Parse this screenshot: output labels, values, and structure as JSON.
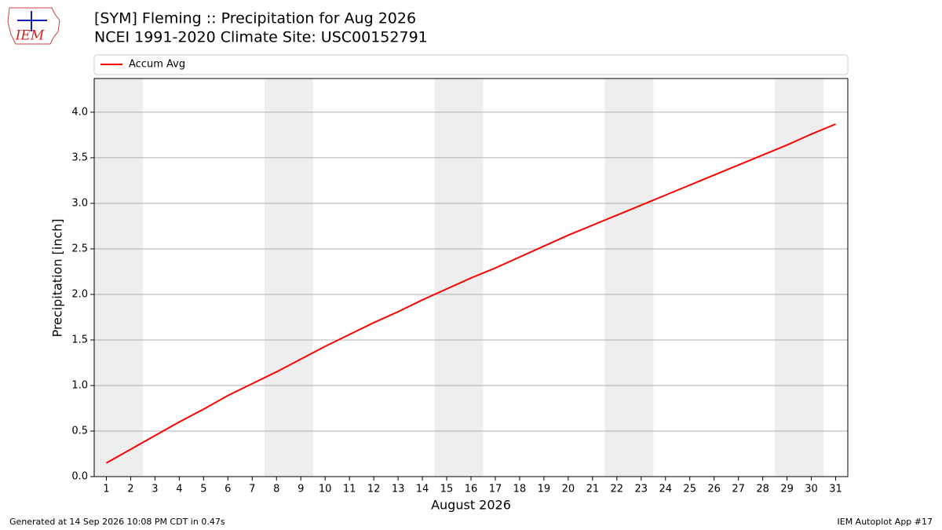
{
  "logo_text": "IEM",
  "chart_data": {
    "type": "line",
    "title": "[SYM] Fleming :: Precipitation for Aug 2026",
    "subtitle": "NCEI 1991-2020 Climate Site: USC00152791",
    "x_label": "August 2026",
    "y_label": "Precipitation [inch]",
    "x": [
      1,
      2,
      3,
      4,
      5,
      6,
      7,
      8,
      9,
      10,
      11,
      12,
      13,
      14,
      15,
      16,
      17,
      18,
      19,
      20,
      21,
      22,
      23,
      24,
      25,
      26,
      27,
      28,
      29,
      30,
      31
    ],
    "series": [
      {
        "name": "Accum Avg",
        "color": "#ff0000",
        "values": [
          0.15,
          0.3,
          0.45,
          0.6,
          0.74,
          0.89,
          1.02,
          1.15,
          1.29,
          1.43,
          1.56,
          1.69,
          1.81,
          1.94,
          2.06,
          2.18,
          2.29,
          2.41,
          2.53,
          2.65,
          2.76,
          2.87,
          2.98,
          3.09,
          3.2,
          3.31,
          3.42,
          3.53,
          3.64,
          3.76,
          3.87
        ]
      }
    ],
    "xlim": [
      0.5,
      31.5
    ],
    "xticks": [
      1,
      2,
      3,
      4,
      5,
      6,
      7,
      8,
      9,
      10,
      11,
      12,
      13,
      14,
      15,
      16,
      17,
      18,
      19,
      20,
      21,
      22,
      23,
      24,
      25,
      26,
      27,
      28,
      29,
      30,
      31
    ],
    "ylim": [
      0,
      4.37
    ],
    "yticks": [
      {
        "value": 0,
        "label": "0.0"
      },
      0.5,
      {
        "value": 1,
        "label": "1.0"
      },
      1.5,
      {
        "value": 2,
        "label": "2.0"
      },
      2.5,
      {
        "value": 3,
        "label": "3.0"
      },
      3.5,
      {
        "value": 4,
        "label": "4.0"
      }
    ],
    "grid": true,
    "legend": "top",
    "shaded_spans": [
      [
        0.5,
        2.5
      ],
      [
        7.5,
        9.5
      ],
      [
        14.5,
        16.5
      ],
      [
        21.5,
        23.5
      ],
      [
        28.5,
        30.5
      ]
    ],
    "shade_color": "#eeeeee"
  },
  "footer": {
    "left": "Generated at 14 Sep 2026 10:08 PM CDT in 0.47s",
    "right": "IEM Autoplot App #17"
  }
}
